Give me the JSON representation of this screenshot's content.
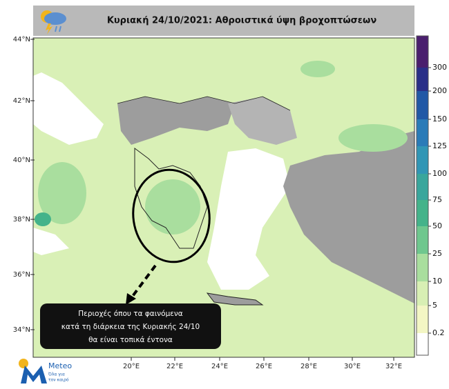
{
  "header": {
    "title": "Κυριακή 24/10/2021: Αθροιστικά  ύψη βροχοπτώσεων"
  },
  "map": {
    "lat_labels": [
      "44°N",
      "42°N",
      "40°N",
      "38°N",
      "36°N",
      "34°N"
    ],
    "lon_labels": [
      "20°E",
      "22°E",
      "24°E",
      "26°E",
      "28°E",
      "30°E",
      "32°E"
    ]
  },
  "legend": {
    "levels": [
      0.2,
      5,
      10,
      25,
      50,
      75,
      100,
      125,
      150,
      200,
      300
    ],
    "colors": [
      "#ffffff",
      "#f3f6c4",
      "#d8efb4",
      "#a9de9e",
      "#6fc78e",
      "#44b38a",
      "#39a69c",
      "#3196b5",
      "#2a7bb8",
      "#2158a6",
      "#2a2f88",
      "#4a1f6e",
      "#2c0838"
    ]
  },
  "annotation": {
    "lines": [
      "Περιοχές όπου τα φαινόμενα",
      "κατά τη διάρκεια της Κυριακής 24/10",
      "θα είναι τοπικά έντονα"
    ]
  },
  "logo": {
    "name": "Meteo",
    "tagline": [
      "Όλα για",
      "τον καιρό"
    ]
  }
}
